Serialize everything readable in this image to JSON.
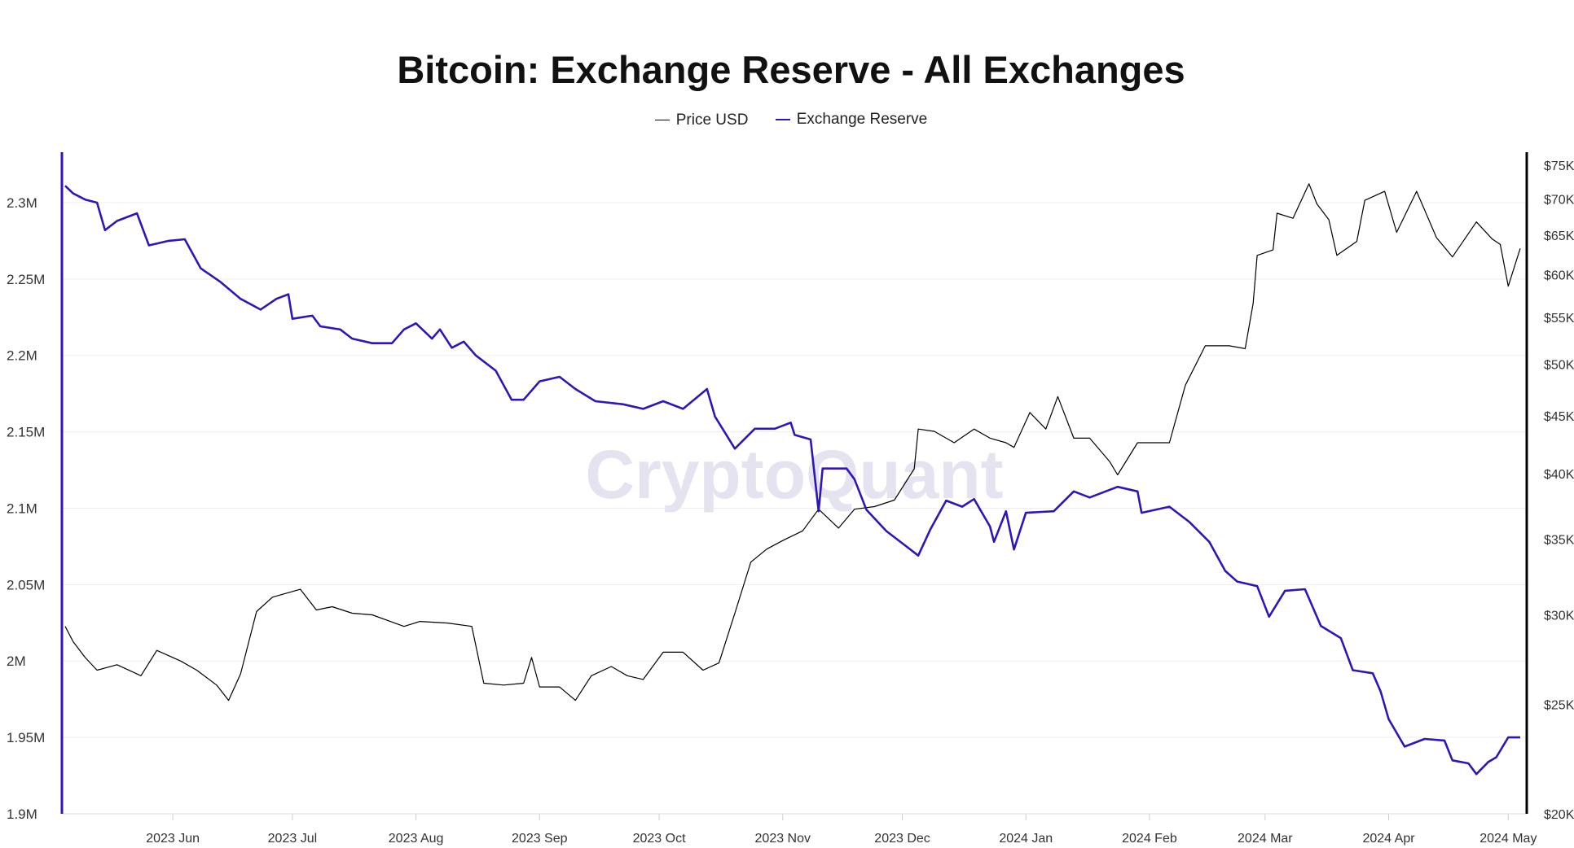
{
  "chart_data": {
    "type": "line",
    "title": "Bitcoin: Exchange Reserve - All Exchanges",
    "watermark": "CryptoQuant",
    "legend_position": "top",
    "grid": true,
    "x_ticks": [
      "2023 Jun",
      "2023 Jul",
      "2023 Aug",
      "2023 Sep",
      "2023 Oct",
      "2023 Nov",
      "2023 Dec",
      "2024 Jan",
      "2024 Feb",
      "2024 Mar",
      "2024 Apr",
      "2024 May"
    ],
    "xlim": [
      "2023-05-05",
      "2024-05-04"
    ],
    "left_axis": {
      "ticks": [
        "1.9M",
        "1.95M",
        "2M",
        "2.05M",
        "2.1M",
        "2.15M",
        "2.2M",
        "2.25M",
        "2.3M"
      ],
      "ylim": [
        1900000,
        2333000
      ],
      "scale": "linear",
      "color": "#2e1aa8"
    },
    "right_axis": {
      "ticks": [
        "$20K",
        "$25K",
        "$30K",
        "$35K",
        "$40K",
        "$45K",
        "$50K",
        "$55K",
        "$60K",
        "$65K",
        "$70K",
        "$75K"
      ],
      "ylim": [
        20000,
        77000
      ],
      "scale": "log",
      "color": "#000000"
    },
    "series": [
      {
        "name": "Price USD",
        "axis": "right",
        "color": "#000000",
        "points": [
          [
            "2023-05-05",
            29300
          ],
          [
            "2023-05-07",
            28400
          ],
          [
            "2023-05-10",
            27500
          ],
          [
            "2023-05-13",
            26800
          ],
          [
            "2023-05-18",
            27100
          ],
          [
            "2023-05-24",
            26500
          ],
          [
            "2023-05-28",
            27900
          ],
          [
            "2023-06-03",
            27300
          ],
          [
            "2023-06-07",
            26800
          ],
          [
            "2023-06-12",
            26000
          ],
          [
            "2023-06-15",
            25200
          ],
          [
            "2023-06-18",
            26600
          ],
          [
            "2023-06-22",
            30200
          ],
          [
            "2023-06-26",
            31100
          ],
          [
            "2023-07-03",
            31600
          ],
          [
            "2023-07-07",
            30300
          ],
          [
            "2023-07-11",
            30500
          ],
          [
            "2023-07-16",
            30100
          ],
          [
            "2023-07-21",
            30000
          ],
          [
            "2023-07-29",
            29300
          ],
          [
            "2023-08-02",
            29600
          ],
          [
            "2023-08-09",
            29500
          ],
          [
            "2023-08-15",
            29300
          ],
          [
            "2023-08-18",
            26100
          ],
          [
            "2023-08-23",
            26000
          ],
          [
            "2023-08-28",
            26100
          ],
          [
            "2023-08-30",
            27500
          ],
          [
            "2023-09-01",
            25900
          ],
          [
            "2023-09-06",
            25900
          ],
          [
            "2023-09-10",
            25200
          ],
          [
            "2023-09-14",
            26500
          ],
          [
            "2023-09-19",
            27000
          ],
          [
            "2023-09-23",
            26500
          ],
          [
            "2023-09-27",
            26300
          ],
          [
            "2023-10-02",
            27800
          ],
          [
            "2023-10-07",
            27800
          ],
          [
            "2023-10-12",
            26800
          ],
          [
            "2023-10-16",
            27200
          ],
          [
            "2023-10-20",
            30100
          ],
          [
            "2023-10-24",
            33400
          ],
          [
            "2023-10-28",
            34300
          ],
          [
            "2023-11-01",
            34900
          ],
          [
            "2023-11-06",
            35600
          ],
          [
            "2023-11-10",
            37200
          ],
          [
            "2023-11-15",
            35800
          ],
          [
            "2023-11-19",
            37200
          ],
          [
            "2023-11-24",
            37400
          ],
          [
            "2023-11-29",
            37900
          ],
          [
            "2023-12-04",
            40400
          ],
          [
            "2023-12-05",
            43800
          ],
          [
            "2023-12-09",
            43600
          ],
          [
            "2023-12-14",
            42600
          ],
          [
            "2023-12-19",
            43800
          ],
          [
            "2023-12-23",
            43000
          ],
          [
            "2023-12-27",
            42600
          ],
          [
            "2023-12-29",
            42200
          ],
          [
            "2024-01-02",
            45300
          ],
          [
            "2024-01-06",
            43800
          ],
          [
            "2024-01-09",
            46800
          ],
          [
            "2024-01-13",
            43000
          ],
          [
            "2024-01-17",
            43000
          ],
          [
            "2024-01-22",
            41000
          ],
          [
            "2024-01-24",
            39900
          ],
          [
            "2024-01-29",
            42600
          ],
          [
            "2024-02-06",
            42600
          ],
          [
            "2024-02-10",
            47900
          ],
          [
            "2024-02-15",
            51900
          ],
          [
            "2024-02-21",
            51900
          ],
          [
            "2024-02-25",
            51600
          ],
          [
            "2024-02-27",
            56600
          ],
          [
            "2024-02-28",
            62400
          ],
          [
            "2024-03-03",
            63100
          ],
          [
            "2024-03-04",
            68000
          ],
          [
            "2024-03-08",
            67300
          ],
          [
            "2024-03-12",
            72200
          ],
          [
            "2024-03-14",
            69300
          ],
          [
            "2024-03-17",
            67100
          ],
          [
            "2024-03-19",
            62400
          ],
          [
            "2024-03-24",
            64200
          ],
          [
            "2024-03-26",
            69800
          ],
          [
            "2024-03-31",
            71100
          ],
          [
            "2024-04-03",
            65400
          ],
          [
            "2024-04-08",
            71100
          ],
          [
            "2024-04-13",
            64700
          ],
          [
            "2024-04-17",
            62200
          ],
          [
            "2024-04-23",
            66800
          ],
          [
            "2024-04-27",
            64500
          ],
          [
            "2024-04-29",
            63800
          ],
          [
            "2024-05-01",
            58600
          ],
          [
            "2024-05-04",
            63300
          ]
        ]
      },
      {
        "name": "Exchange Reserve",
        "axis": "left",
        "color": "#2e1aa8",
        "points": [
          [
            "2023-05-05",
            2311000
          ],
          [
            "2023-05-07",
            2306000
          ],
          [
            "2023-05-10",
            2302000
          ],
          [
            "2023-05-13",
            2300000
          ],
          [
            "2023-05-15",
            2282000
          ],
          [
            "2023-05-18",
            2288000
          ],
          [
            "2023-05-23",
            2293000
          ],
          [
            "2023-05-26",
            2272000
          ],
          [
            "2023-05-31",
            2275000
          ],
          [
            "2023-06-04",
            2276000
          ],
          [
            "2023-06-08",
            2257000
          ],
          [
            "2023-06-13",
            2248000
          ],
          [
            "2023-06-18",
            2237000
          ],
          [
            "2023-06-23",
            2230000
          ],
          [
            "2023-06-27",
            2237000
          ],
          [
            "2023-06-30",
            2240000
          ],
          [
            "2023-07-01",
            2224000
          ],
          [
            "2023-07-06",
            2226000
          ],
          [
            "2023-07-08",
            2219000
          ],
          [
            "2023-07-13",
            2217000
          ],
          [
            "2023-07-16",
            2211000
          ],
          [
            "2023-07-21",
            2208000
          ],
          [
            "2023-07-26",
            2208000
          ],
          [
            "2023-07-29",
            2217000
          ],
          [
            "2023-08-01",
            2221000
          ],
          [
            "2023-08-05",
            2211000
          ],
          [
            "2023-08-07",
            2217000
          ],
          [
            "2023-08-10",
            2205000
          ],
          [
            "2023-08-13",
            2209000
          ],
          [
            "2023-08-16",
            2200000
          ],
          [
            "2023-08-21",
            2190000
          ],
          [
            "2023-08-25",
            2171000
          ],
          [
            "2023-08-28",
            2171000
          ],
          [
            "2023-09-01",
            2183000
          ],
          [
            "2023-09-06",
            2186000
          ],
          [
            "2023-09-10",
            2178000
          ],
          [
            "2023-09-15",
            2170000
          ],
          [
            "2023-09-22",
            2168000
          ],
          [
            "2023-09-27",
            2165000
          ],
          [
            "2023-10-02",
            2170000
          ],
          [
            "2023-10-07",
            2165000
          ],
          [
            "2023-10-13",
            2178000
          ],
          [
            "2023-10-15",
            2160000
          ],
          [
            "2023-10-20",
            2139000
          ],
          [
            "2023-10-25",
            2152000
          ],
          [
            "2023-10-30",
            2152000
          ],
          [
            "2023-11-03",
            2156000
          ],
          [
            "2023-11-04",
            2148000
          ],
          [
            "2023-11-08",
            2145000
          ],
          [
            "2023-11-10",
            2098000
          ],
          [
            "2023-11-11",
            2126000
          ],
          [
            "2023-11-17",
            2126000
          ],
          [
            "2023-11-19",
            2119000
          ],
          [
            "2023-11-22",
            2099000
          ],
          [
            "2023-11-27",
            2085000
          ],
          [
            "2023-12-02",
            2075000
          ],
          [
            "2023-12-05",
            2069000
          ],
          [
            "2023-12-08",
            2086000
          ],
          [
            "2023-12-12",
            2105000
          ],
          [
            "2023-12-16",
            2101000
          ],
          [
            "2023-12-19",
            2106000
          ],
          [
            "2023-12-23",
            2088000
          ],
          [
            "2023-12-24",
            2078000
          ],
          [
            "2023-12-27",
            2098000
          ],
          [
            "2023-12-29",
            2073000
          ],
          [
            "2024-01-01",
            2097000
          ],
          [
            "2024-01-08",
            2098000
          ],
          [
            "2024-01-13",
            2111000
          ],
          [
            "2024-01-17",
            2107000
          ],
          [
            "2024-01-24",
            2114000
          ],
          [
            "2024-01-29",
            2111000
          ],
          [
            "2024-01-30",
            2097000
          ],
          [
            "2024-02-06",
            2101000
          ],
          [
            "2024-02-11",
            2091000
          ],
          [
            "2024-02-16",
            2078000
          ],
          [
            "2024-02-20",
            2059000
          ],
          [
            "2024-02-23",
            2052000
          ],
          [
            "2024-02-28",
            2049000
          ],
          [
            "2024-03-02",
            2029000
          ],
          [
            "2024-03-06",
            2046000
          ],
          [
            "2024-03-11",
            2047000
          ],
          [
            "2024-03-15",
            2023000
          ],
          [
            "2024-03-20",
            2015000
          ],
          [
            "2024-03-23",
            1994000
          ],
          [
            "2024-03-28",
            1992000
          ],
          [
            "2024-03-30",
            1980000
          ],
          [
            "2024-04-01",
            1962000
          ],
          [
            "2024-04-05",
            1944000
          ],
          [
            "2024-04-10",
            1949000
          ],
          [
            "2024-04-15",
            1948000
          ],
          [
            "2024-04-17",
            1935000
          ],
          [
            "2024-04-21",
            1933000
          ],
          [
            "2024-04-23",
            1926000
          ],
          [
            "2024-04-26",
            1934000
          ],
          [
            "2024-04-28",
            1937000
          ],
          [
            "2024-05-01",
            1950000
          ],
          [
            "2024-05-04",
            1950000
          ]
        ]
      }
    ]
  }
}
